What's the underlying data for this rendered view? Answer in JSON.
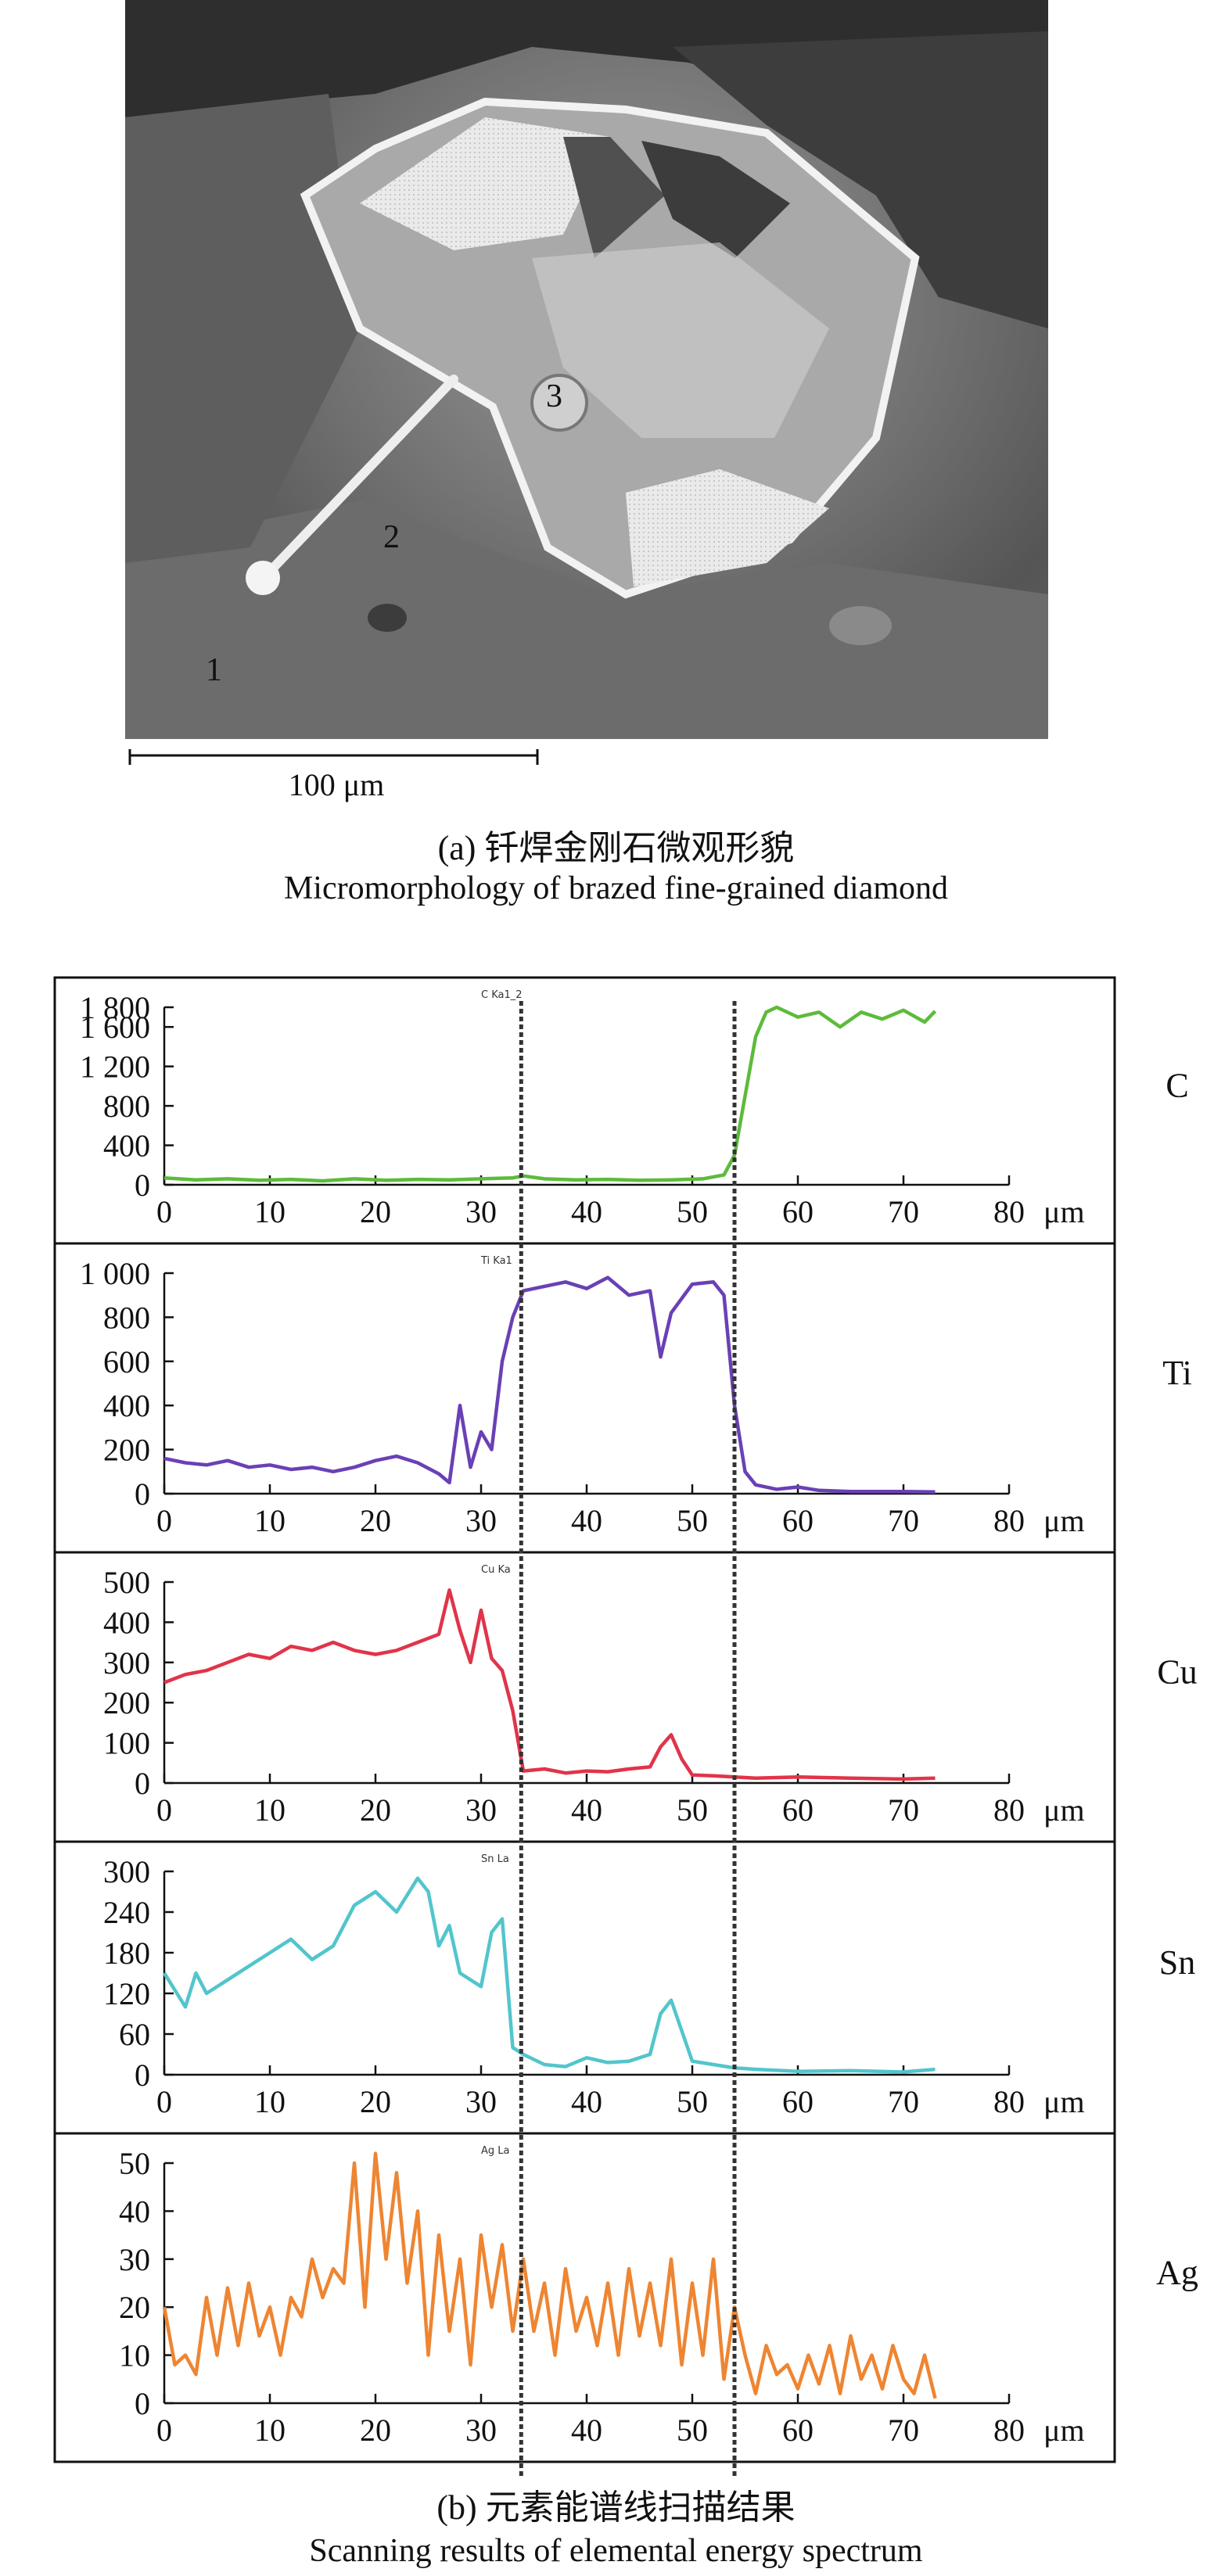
{
  "panel_a": {
    "point_labels": [
      "1",
      "2",
      "3"
    ],
    "scale_bar_label": "100 μm",
    "caption_zh": "(a) 钎焊金刚石微观形貌",
    "caption_en": "Micromorphology of brazed fine-grained diamond"
  },
  "panel_b": {
    "caption_zh": "(b) 元素能谱线扫描结果",
    "caption_en": "Scanning results of elemental energy spectrum",
    "x_unit": "μm",
    "x_ticks": [
      0,
      10,
      20,
      30,
      40,
      50,
      60,
      70,
      80
    ],
    "boundary_x": [
      33.8,
      54.0
    ]
  },
  "chart_data": [
    {
      "type": "line",
      "element": "C",
      "tag": "C Ka1_2",
      "color": "#5dbb3b",
      "ylim": [
        0,
        1800
      ],
      "y_ticks": [
        0,
        400,
        800,
        1200,
        1600,
        1800
      ],
      "y_tick_labels": [
        "0",
        "400",
        "800",
        "1 200",
        "1 600",
        "1 800"
      ],
      "x": [
        0,
        3,
        6,
        9,
        12,
        15,
        18,
        21,
        24,
        27,
        30,
        33,
        34,
        36,
        39,
        42,
        45,
        48,
        51,
        53,
        54,
        55,
        56,
        57,
        58,
        60,
        62,
        64,
        66,
        68,
        70,
        72,
        73
      ],
      "y": [
        70,
        50,
        60,
        45,
        55,
        40,
        60,
        45,
        55,
        50,
        60,
        70,
        90,
        60,
        50,
        55,
        45,
        50,
        60,
        100,
        300,
        900,
        1500,
        1750,
        1800,
        1700,
        1750,
        1600,
        1750,
        1680,
        1770,
        1650,
        1760
      ]
    },
    {
      "type": "line",
      "element": "Ti",
      "tag": "Ti Ka1",
      "color": "#6a40b5",
      "ylim": [
        0,
        1000
      ],
      "y_ticks": [
        0,
        200,
        400,
        600,
        800,
        1000
      ],
      "y_tick_labels": [
        "0",
        "200",
        "400",
        "600",
        "800",
        "1 000"
      ],
      "x": [
        0,
        2,
        4,
        6,
        8,
        10,
        12,
        14,
        16,
        18,
        20,
        22,
        24,
        26,
        27,
        28,
        29,
        30,
        31,
        32,
        33,
        34,
        36,
        38,
        40,
        42,
        44,
        46,
        47,
        48,
        50,
        52,
        53,
        54,
        55,
        56,
        58,
        60,
        62,
        65,
        70,
        73
      ],
      "y": [
        160,
        140,
        130,
        150,
        120,
        130,
        110,
        120,
        100,
        120,
        150,
        170,
        140,
        90,
        50,
        400,
        120,
        280,
        200,
        600,
        800,
        920,
        940,
        960,
        930,
        980,
        900,
        920,
        620,
        820,
        950,
        960,
        900,
        400,
        100,
        40,
        20,
        30,
        15,
        10,
        10,
        8
      ]
    },
    {
      "type": "line",
      "element": "Cu",
      "tag": "Cu Ka",
      "color": "#e0344a",
      "ylim": [
        0,
        500
      ],
      "y_ticks": [
        0,
        100,
        200,
        300,
        400,
        500
      ],
      "y_tick_labels": [
        "0",
        "100",
        "200",
        "300",
        "400",
        "500"
      ],
      "x": [
        0,
        2,
        4,
        6,
        8,
        10,
        12,
        14,
        16,
        18,
        20,
        22,
        24,
        26,
        27,
        28,
        29,
        30,
        31,
        32,
        33,
        34,
        36,
        38,
        40,
        42,
        44,
        46,
        47,
        48,
        49,
        50,
        52,
        54,
        56,
        60,
        65,
        70,
        73
      ],
      "y": [
        250,
        270,
        280,
        300,
        320,
        310,
        340,
        330,
        350,
        330,
        320,
        330,
        350,
        370,
        480,
        380,
        300,
        430,
        310,
        280,
        180,
        30,
        35,
        25,
        30,
        28,
        35,
        40,
        90,
        120,
        60,
        20,
        18,
        15,
        12,
        15,
        12,
        10,
        12
      ]
    },
    {
      "type": "line",
      "element": "Sn",
      "tag": "Sn La",
      "color": "#52c5cc",
      "ylim": [
        0,
        300
      ],
      "y_ticks": [
        0,
        60,
        120,
        180,
        240,
        300
      ],
      "y_tick_labels": [
        "0",
        "60",
        "120",
        "180",
        "240",
        "300"
      ],
      "x": [
        0,
        2,
        3,
        4,
        6,
        8,
        10,
        12,
        14,
        16,
        18,
        20,
        22,
        24,
        25,
        26,
        27,
        28,
        30,
        31,
        32,
        33,
        34,
        36,
        38,
        40,
        42,
        44,
        46,
        47,
        48,
        50,
        52,
        54,
        56,
        60,
        65,
        70,
        73
      ],
      "y": [
        150,
        100,
        150,
        120,
        140,
        160,
        180,
        200,
        170,
        190,
        250,
        270,
        240,
        290,
        270,
        190,
        220,
        150,
        130,
        210,
        230,
        40,
        30,
        15,
        12,
        25,
        18,
        20,
        30,
        90,
        110,
        20,
        15,
        10,
        8,
        5,
        6,
        4,
        8
      ]
    },
    {
      "type": "line",
      "element": "Ag",
      "tag": "Ag La",
      "color": "#ee8532",
      "ylim": [
        0,
        50
      ],
      "y_ticks": [
        0,
        10,
        20,
        30,
        40,
        50
      ],
      "y_tick_labels": [
        "0",
        "10",
        "20",
        "30",
        "40",
        "50"
      ],
      "x": [
        0,
        1,
        2,
        3,
        4,
        5,
        6,
        7,
        8,
        9,
        10,
        11,
        12,
        13,
        14,
        15,
        16,
        17,
        18,
        19,
        20,
        21,
        22,
        23,
        24,
        25,
        26,
        27,
        28,
        29,
        30,
        31,
        32,
        33,
        34,
        35,
        36,
        37,
        38,
        39,
        40,
        41,
        42,
        43,
        44,
        45,
        46,
        47,
        48,
        49,
        50,
        51,
        52,
        53,
        54,
        55,
        56,
        57,
        58,
        59,
        60,
        61,
        62,
        63,
        64,
        65,
        66,
        67,
        68,
        69,
        70,
        71,
        72,
        73
      ],
      "y": [
        20,
        8,
        10,
        6,
        22,
        10,
        24,
        12,
        25,
        14,
        20,
        10,
        22,
        18,
        30,
        22,
        28,
        25,
        50,
        20,
        52,
        30,
        48,
        25,
        40,
        10,
        35,
        15,
        30,
        8,
        35,
        20,
        33,
        15,
        30,
        15,
        25,
        10,
        28,
        15,
        22,
        12,
        25,
        10,
        28,
        14,
        25,
        12,
        30,
        8,
        25,
        10,
        30,
        5,
        20,
        10,
        2,
        12,
        6,
        8,
        3,
        10,
        4,
        12,
        2,
        14,
        5,
        10,
        3,
        12,
        5,
        2,
        10,
        1
      ]
    }
  ]
}
